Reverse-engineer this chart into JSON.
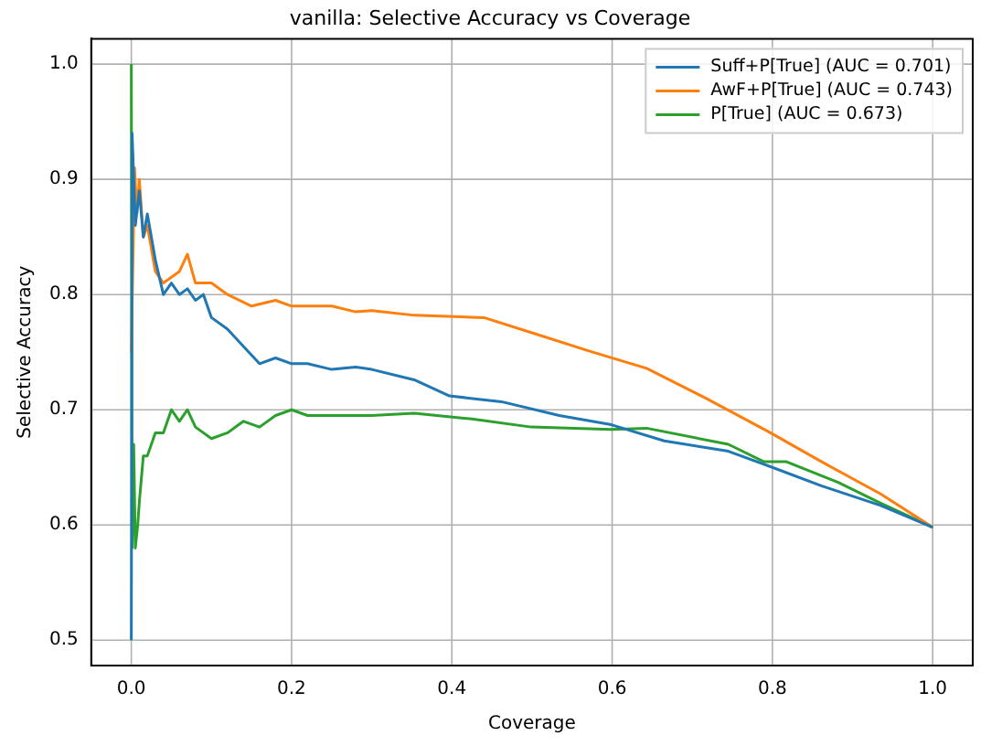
{
  "chart_data": {
    "type": "line",
    "title": "vanilla: Selective Accuracy vs Coverage",
    "xlabel": "Coverage",
    "ylabel": "Selective Accuracy",
    "xlim": [
      -0.05,
      1.05
    ],
    "ylim": [
      0.478,
      1.022
    ],
    "xticks": [
      {
        "value": 0,
        "label": "0.0"
      },
      0.2,
      0.4,
      0.6,
      0.8,
      {
        "value": 1,
        "label": "1.0"
      }
    ],
    "yticks": [
      0.5,
      0.6,
      0.7,
      0.8,
      0.9,
      {
        "value": 1,
        "label": "1.0"
      }
    ],
    "grid": true,
    "legend": "top right",
    "marker": "none",
    "line_style": "solid",
    "series": [
      {
        "name": "Suff+P[True] (AUC = 0.701)",
        "color": "#1f77b4",
        "x": [
          0,
          0.001,
          0.005,
          0.01,
          0.015,
          0.02,
          0.03,
          0.04,
          0.05,
          0.06,
          0.07,
          0.08,
          0.09,
          0.1,
          0.12,
          0.14,
          0.16,
          0.18,
          0.2,
          0.22,
          0.25,
          0.28,
          0.3,
          0.353,
          0.397,
          0.462,
          0.534,
          0.599,
          0.665,
          0.745,
          0.8,
          0.861,
          0.935,
          1.0
        ],
        "values": [
          0.5,
          0.94,
          0.86,
          0.89,
          0.85,
          0.87,
          0.83,
          0.8,
          0.81,
          0.8,
          0.805,
          0.795,
          0.8,
          0.78,
          0.77,
          0.755,
          0.74,
          0.745,
          0.74,
          0.74,
          0.735,
          0.737,
          0.735,
          0.726,
          0.712,
          0.707,
          0.695,
          0.687,
          0.673,
          0.664,
          0.65,
          0.634,
          0.617,
          0.598
        ]
      },
      {
        "name": "AwF+P[True] (AUC = 0.743)",
        "color": "#ff7f0e",
        "x": [
          0,
          0.004,
          0.007,
          0.01,
          0.015,
          0.02,
          0.03,
          0.04,
          0.05,
          0.06,
          0.07,
          0.08,
          0.1,
          0.12,
          0.15,
          0.18,
          0.2,
          0.22,
          0.25,
          0.28,
          0.3,
          0.353,
          0.44,
          0.499,
          0.571,
          0.643,
          0.717,
          0.795,
          0.861,
          0.935,
          1.0
        ],
        "values": [
          0.75,
          0.91,
          0.87,
          0.9,
          0.85,
          0.86,
          0.82,
          0.81,
          0.815,
          0.82,
          0.835,
          0.81,
          0.81,
          0.8,
          0.79,
          0.795,
          0.79,
          0.79,
          0.79,
          0.785,
          0.786,
          0.782,
          0.78,
          0.767,
          0.751,
          0.736,
          0.71,
          0.681,
          0.655,
          0.627,
          0.598
        ]
      },
      {
        "name": "P[True] (AUC = 0.673)",
        "color": "#2ca02c",
        "x": [
          0,
          0.001,
          0.003,
          0.005,
          0.008,
          0.01,
          0.015,
          0.02,
          0.03,
          0.04,
          0.05,
          0.06,
          0.07,
          0.08,
          0.1,
          0.12,
          0.14,
          0.16,
          0.18,
          0.2,
          0.22,
          0.25,
          0.3,
          0.353,
          0.425,
          0.499,
          0.599,
          0.643,
          0.745,
          0.789,
          0.817,
          0.882,
          0.935,
          1.0
        ],
        "values": [
          1.0,
          0.58,
          0.67,
          0.58,
          0.6,
          0.62,
          0.66,
          0.66,
          0.68,
          0.68,
          0.7,
          0.69,
          0.7,
          0.685,
          0.675,
          0.68,
          0.69,
          0.685,
          0.695,
          0.7,
          0.695,
          0.695,
          0.695,
          0.697,
          0.692,
          0.685,
          0.683,
          0.684,
          0.67,
          0.655,
          0.655,
          0.637,
          0.619,
          0.598
        ]
      }
    ]
  }
}
